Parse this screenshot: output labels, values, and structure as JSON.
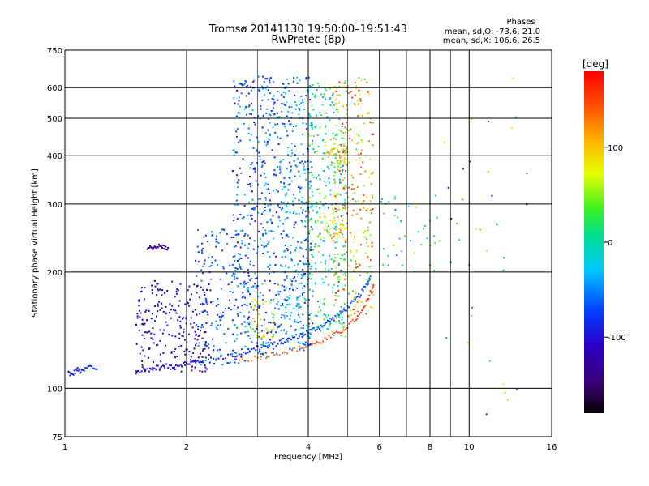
{
  "chart_data": {
    "type": "scatter",
    "title": "Tromsø 20141130 19:50:00–19:51:43",
    "subtitle": "RwPretec (8p)",
    "stats": {
      "heading": "Phases",
      "line1": "mean, sd,O: -73.6, 21.0",
      "line2": "mean, sd,X: 106.6, 26.5"
    },
    "xlabel": "Frequency [MHz]",
    "ylabel": "Stationary phase Virtual Height [km]",
    "x_scale": "log",
    "y_scale": "log",
    "xlim": [
      1,
      16
    ],
    "ylim": [
      75,
      750
    ],
    "x_ticks": [
      1,
      2,
      4,
      6,
      8,
      10,
      16
    ],
    "x_tick_labels": [
      "1",
      "2",
      "4",
      "6",
      "8",
      "10",
      "16"
    ],
    "y_ticks": [
      75,
      100,
      200,
      300,
      400,
      500,
      600,
      750
    ],
    "y_tick_labels": [
      "75",
      "100",
      "200",
      "300",
      "400",
      "500",
      "600",
      "750"
    ],
    "grid": true,
    "colorbar": {
      "label": "[deg]",
      "range": [
        -180,
        180
      ],
      "ticks": [
        100,
        0,
        -100
      ],
      "tick_labels": [
        "100",
        "0",
        "-100"
      ]
    },
    "traces": [
      {
        "points": [
          [
            1.02,
            110,
            -90
          ],
          [
            1.04,
            108,
            -90
          ],
          [
            1.07,
            112,
            -85
          ],
          [
            1.1,
            110,
            -88
          ],
          [
            1.15,
            114,
            -80
          ],
          [
            1.2,
            112,
            -70
          ]
        ]
      },
      {
        "points": [
          [
            1.5,
            110,
            -100
          ],
          [
            1.6,
            112,
            -100
          ],
          [
            1.7,
            113,
            -100
          ],
          [
            1.8,
            114,
            -100
          ],
          [
            1.9,
            115,
            -100
          ],
          [
            2.0,
            116,
            -100
          ],
          [
            2.1,
            117,
            -95
          ],
          [
            2.2,
            118,
            -95
          ],
          [
            2.4,
            120,
            -90
          ],
          [
            2.6,
            122,
            -90
          ],
          [
            2.8,
            124,
            -85
          ],
          [
            3.0,
            127,
            -85
          ],
          [
            3.2,
            129,
            -80
          ],
          [
            3.4,
            131,
            -80
          ],
          [
            3.6,
            134,
            -80
          ],
          [
            3.8,
            137,
            -75
          ],
          [
            4.0,
            140,
            -75
          ],
          [
            4.2,
            143,
            -75
          ],
          [
            4.4,
            147,
            -75
          ],
          [
            4.6,
            151,
            -70
          ],
          [
            4.8,
            156,
            -70
          ],
          [
            5.0,
            162,
            -70
          ],
          [
            5.2,
            168,
            -65
          ],
          [
            5.4,
            176,
            -65
          ],
          [
            5.6,
            186,
            -60
          ],
          [
            5.7,
            195,
            -60
          ]
        ]
      },
      {
        "points": [
          [
            2.7,
            118,
            130
          ],
          [
            3.0,
            120,
            135
          ],
          [
            3.3,
            123,
            135
          ],
          [
            3.6,
            125,
            140
          ],
          [
            3.9,
            128,
            140
          ],
          [
            4.2,
            131,
            145
          ],
          [
            4.5,
            135,
            150
          ],
          [
            4.8,
            140,
            150
          ],
          [
            5.1,
            147,
            155
          ],
          [
            5.4,
            156,
            155
          ],
          [
            5.6,
            168,
            160
          ],
          [
            5.8,
            185,
            160
          ]
        ]
      },
      {
        "points": [
          [
            1.6,
            230,
            -140
          ],
          [
            1.65,
            232,
            -140
          ],
          [
            1.7,
            233,
            -140
          ],
          [
            1.75,
            232,
            -135
          ],
          [
            1.8,
            231,
            -135
          ]
        ]
      }
    ],
    "clusters": [
      {
        "x": [
          1.5,
          2.3
        ],
        "y": [
          110,
          190
        ],
        "phase": [
          -130,
          -90
        ],
        "count": 240
      },
      {
        "x": [
          2.1,
          2.9
        ],
        "y": [
          115,
          260
        ],
        "phase": [
          -90,
          -40
        ],
        "count": 180
      },
      {
        "x": [
          2.6,
          3.4
        ],
        "y": [
          120,
          650
        ],
        "phase": [
          -110,
          -20
        ],
        "count": 420
      },
      {
        "x": [
          3.4,
          4.1
        ],
        "y": [
          125,
          640
        ],
        "phase": [
          -90,
          -10
        ],
        "count": 380
      },
      {
        "x": [
          4.0,
          5.0
        ],
        "y": [
          135,
          630
        ],
        "phase": [
          -60,
          60
        ],
        "count": 300
      },
      {
        "x": [
          4.6,
          5.8
        ],
        "y": [
          150,
          640
        ],
        "phase": [
          20,
          170
        ],
        "count": 280
      },
      {
        "x": [
          2.9,
          3.3
        ],
        "y": [
          135,
          170
        ],
        "phase": [
          40,
          110
        ],
        "count": 40
      },
      {
        "x": [
          4.4,
          5.0
        ],
        "y": [
          380,
          430
        ],
        "phase": [
          80,
          120
        ],
        "count": 40
      },
      {
        "x": [
          4.3,
          5.0
        ],
        "y": [
          240,
          280
        ],
        "phase": [
          70,
          110
        ],
        "count": 30
      },
      {
        "x": [
          6.0,
          8.5
        ],
        "y": [
          200,
          320
        ],
        "phase": [
          -60,
          60
        ],
        "count": 40
      },
      {
        "x": [
          8.3,
          14.0
        ],
        "y": [
          80,
          650
        ],
        "phase": [
          -120,
          160
        ],
        "count": 35
      }
    ]
  }
}
